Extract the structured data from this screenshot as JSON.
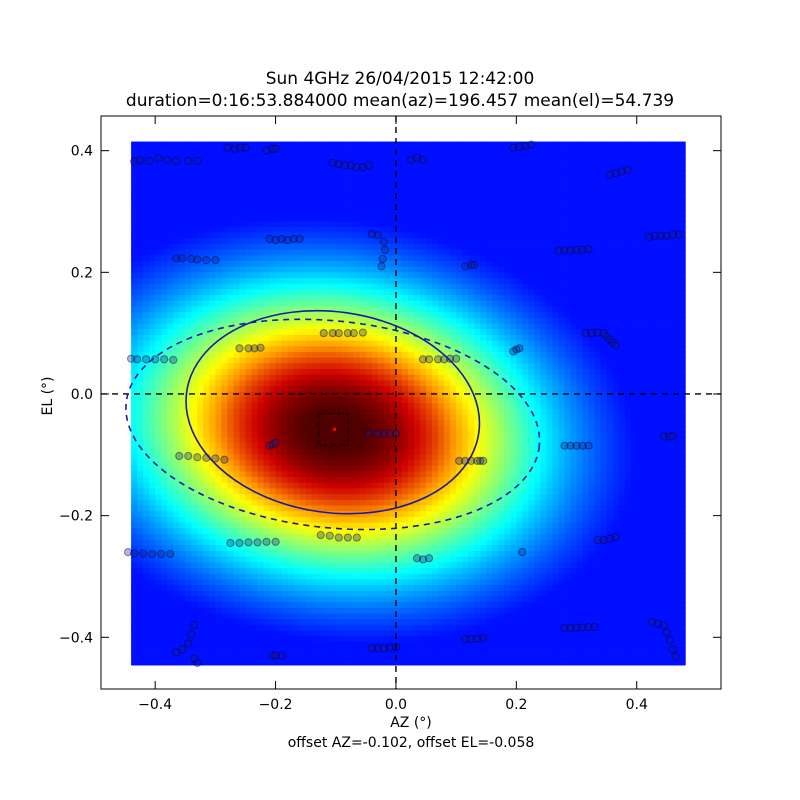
{
  "chart_data": {
    "type": "heatmap",
    "title": "Sun 4GHz 26/04/2015 12:42:00",
    "subtitle": "duration=0:16:53.884000 mean(az)=196.457 mean(el)=54.739",
    "xlabel": "AZ (°)",
    "ylabel": "EL (°)",
    "caption": "offset AZ=-0.102, offset EL=-0.058",
    "xlim": [
      -0.49,
      0.54
    ],
    "ylim": [
      -0.485,
      0.457
    ],
    "xticks": [
      -0.4,
      -0.2,
      0.0,
      0.2,
      0.4
    ],
    "yticks": [
      -0.4,
      -0.2,
      0.0,
      0.2,
      0.4
    ],
    "xtick_labels": [
      "−0.4",
      "−0.2",
      "0.0",
      "0.2",
      "0.4"
    ],
    "ytick_labels": [
      "−0.4",
      "−0.2",
      "0.0",
      "0.2",
      "0.4"
    ],
    "grid": false,
    "colormap": "jet",
    "image_extent": {
      "x": [
        -0.44,
        0.48
      ],
      "y": [
        -0.445,
        0.415
      ]
    },
    "beam_center": [
      -0.1,
      -0.06
    ],
    "beam_radii": [
      0.13,
      0.09
    ],
    "beam_rotation_deg": -8,
    "ellipses": [
      {
        "style": "solid",
        "center": [
          -0.105,
          -0.03
        ],
        "rx": 0.245,
        "ry": 0.165,
        "rotation_deg": -8,
        "color": "#1a1aa8"
      },
      {
        "style": "dashed",
        "center": [
          -0.105,
          -0.05
        ],
        "rx": 0.345,
        "ry": 0.17,
        "rotation_deg": -6,
        "color": "#1a1aa8"
      }
    ],
    "crosshair": {
      "x": 0.0,
      "y": 0.0
    },
    "peak_marker": [
      -0.102,
      -0.058
    ],
    "peak_box": {
      "x": [
        -0.128,
        -0.08
      ],
      "y": [
        -0.084,
        -0.032
      ]
    },
    "scan_points": [
      [
        -0.435,
        0.382
      ],
      [
        -0.425,
        0.385
      ],
      [
        -0.41,
        0.383
      ],
      [
        -0.395,
        0.388
      ],
      [
        -0.38,
        0.385
      ],
      [
        -0.365,
        0.383
      ],
      [
        -0.345,
        0.383
      ],
      [
        -0.33,
        0.383
      ],
      [
        -0.28,
        0.405
      ],
      [
        -0.268,
        0.403
      ],
      [
        -0.258,
        0.405
      ],
      [
        -0.25,
        0.405
      ],
      [
        -0.215,
        0.4
      ],
      [
        -0.205,
        0.403
      ],
      [
        -0.2,
        0.403
      ],
      [
        -0.105,
        0.38
      ],
      [
        -0.095,
        0.378
      ],
      [
        -0.085,
        0.376
      ],
      [
        -0.075,
        0.376
      ],
      [
        -0.065,
        0.373
      ],
      [
        -0.055,
        0.373
      ],
      [
        -0.045,
        0.376
      ],
      [
        0.025,
        0.385
      ],
      [
        0.035,
        0.388
      ],
      [
        0.045,
        0.385
      ],
      [
        0.195,
        0.405
      ],
      [
        0.205,
        0.406
      ],
      [
        0.215,
        0.408
      ],
      [
        0.225,
        0.41
      ],
      [
        0.355,
        0.36
      ],
      [
        0.365,
        0.363
      ],
      [
        0.375,
        0.366
      ],
      [
        0.385,
        0.368
      ],
      [
        -0.365,
        0.223
      ],
      [
        -0.355,
        0.223
      ],
      [
        -0.34,
        0.222
      ],
      [
        -0.33,
        0.221
      ],
      [
        -0.315,
        0.22
      ],
      [
        -0.3,
        0.22
      ],
      [
        -0.21,
        0.255
      ],
      [
        -0.2,
        0.253
      ],
      [
        -0.19,
        0.255
      ],
      [
        -0.18,
        0.253
      ],
      [
        -0.17,
        0.255
      ],
      [
        -0.16,
        0.255
      ],
      [
        -0.04,
        0.263
      ],
      [
        -0.03,
        0.261
      ],
      [
        -0.02,
        0.25
      ],
      [
        -0.018,
        0.237
      ],
      [
        -0.022,
        0.222
      ],
      [
        -0.024,
        0.21
      ],
      [
        0.115,
        0.21
      ],
      [
        0.125,
        0.212
      ],
      [
        0.13,
        0.212
      ],
      [
        0.27,
        0.235
      ],
      [
        0.28,
        0.236
      ],
      [
        0.29,
        0.236
      ],
      [
        0.3,
        0.237
      ],
      [
        0.31,
        0.237
      ],
      [
        0.32,
        0.238
      ],
      [
        0.42,
        0.258
      ],
      [
        0.43,
        0.26
      ],
      [
        0.44,
        0.26
      ],
      [
        0.45,
        0.26
      ],
      [
        0.46,
        0.262
      ],
      [
        0.47,
        0.262
      ],
      [
        -0.44,
        0.058
      ],
      [
        -0.43,
        0.057
      ],
      [
        -0.415,
        0.057
      ],
      [
        -0.4,
        0.057
      ],
      [
        -0.385,
        0.057
      ],
      [
        -0.37,
        0.056
      ],
      [
        -0.26,
        0.075
      ],
      [
        -0.245,
        0.075
      ],
      [
        -0.235,
        0.075
      ],
      [
        -0.225,
        0.076
      ],
      [
        -0.12,
        0.1
      ],
      [
        -0.105,
        0.1
      ],
      [
        -0.095,
        0.1
      ],
      [
        -0.08,
        0.1
      ],
      [
        -0.07,
        0.1
      ],
      [
        -0.055,
        0.101
      ],
      [
        0.045,
        0.057
      ],
      [
        0.055,
        0.057
      ],
      [
        0.07,
        0.057
      ],
      [
        0.08,
        0.057
      ],
      [
        0.09,
        0.058
      ],
      [
        0.1,
        0.058
      ],
      [
        0.195,
        0.07
      ],
      [
        0.2,
        0.073
      ],
      [
        0.205,
        0.075
      ],
      [
        0.315,
        0.1
      ],
      [
        0.325,
        0.1
      ],
      [
        0.335,
        0.101
      ],
      [
        0.345,
        0.1
      ],
      [
        0.35,
        0.095
      ],
      [
        0.355,
        0.09
      ],
      [
        0.36,
        0.085
      ],
      [
        0.365,
        0.08
      ],
      [
        -0.36,
        -0.102
      ],
      [
        -0.345,
        -0.102
      ],
      [
        -0.33,
        -0.104
      ],
      [
        -0.315,
        -0.105
      ],
      [
        -0.3,
        -0.106
      ],
      [
        -0.285,
        -0.108
      ],
      [
        -0.21,
        -0.085
      ],
      [
        -0.205,
        -0.083
      ],
      [
        -0.2,
        -0.08
      ],
      [
        -0.045,
        -0.065
      ],
      [
        -0.03,
        -0.065
      ],
      [
        -0.02,
        -0.065
      ],
      [
        -0.01,
        -0.065
      ],
      [
        0.0,
        -0.066
      ],
      [
        0.105,
        -0.11
      ],
      [
        0.115,
        -0.11
      ],
      [
        0.125,
        -0.11
      ],
      [
        0.135,
        -0.11
      ],
      [
        0.14,
        -0.11
      ],
      [
        0.145,
        -0.11
      ],
      [
        0.28,
        -0.085
      ],
      [
        0.29,
        -0.085
      ],
      [
        0.3,
        -0.085
      ],
      [
        0.31,
        -0.085
      ],
      [
        0.32,
        -0.085
      ],
      [
        0.445,
        -0.07
      ],
      [
        0.455,
        -0.07
      ],
      [
        0.46,
        -0.07
      ],
      [
        -0.445,
        -0.26
      ],
      [
        -0.435,
        -0.262
      ],
      [
        -0.42,
        -0.262
      ],
      [
        -0.405,
        -0.263
      ],
      [
        -0.39,
        -0.263
      ],
      [
        -0.375,
        -0.263
      ],
      [
        -0.275,
        -0.245
      ],
      [
        -0.26,
        -0.245
      ],
      [
        -0.245,
        -0.244
      ],
      [
        -0.23,
        -0.244
      ],
      [
        -0.215,
        -0.243
      ],
      [
        -0.2,
        -0.243
      ],
      [
        -0.125,
        -0.232
      ],
      [
        -0.11,
        -0.233
      ],
      [
        -0.095,
        -0.236
      ],
      [
        -0.08,
        -0.236
      ],
      [
        -0.065,
        -0.236
      ],
      [
        0.035,
        -0.27
      ],
      [
        0.045,
        -0.272
      ],
      [
        0.055,
        -0.27
      ],
      [
        0.21,
        -0.26
      ],
      [
        0.335,
        -0.24
      ],
      [
        0.345,
        -0.24
      ],
      [
        0.355,
        -0.238
      ],
      [
        0.365,
        -0.235
      ],
      [
        -0.365,
        -0.425
      ],
      [
        -0.355,
        -0.42
      ],
      [
        -0.345,
        -0.41
      ],
      [
        -0.34,
        -0.395
      ],
      [
        -0.335,
        -0.38
      ],
      [
        -0.33,
        -0.442
      ],
      [
        -0.335,
        -0.435
      ],
      [
        -0.205,
        -0.43
      ],
      [
        -0.2,
        -0.43
      ],
      [
        -0.19,
        -0.43
      ],
      [
        -0.04,
        -0.418
      ],
      [
        -0.03,
        -0.418
      ],
      [
        -0.02,
        -0.418
      ],
      [
        -0.01,
        -0.417
      ],
      [
        0.0,
        -0.416
      ],
      [
        0.115,
        -0.403
      ],
      [
        0.125,
        -0.403
      ],
      [
        0.135,
        -0.402
      ],
      [
        0.145,
        -0.401
      ],
      [
        0.28,
        -0.385
      ],
      [
        0.29,
        -0.385
      ],
      [
        0.3,
        -0.384
      ],
      [
        0.31,
        -0.384
      ],
      [
        0.32,
        -0.383
      ],
      [
        0.33,
        -0.383
      ],
      [
        0.425,
        -0.375
      ],
      [
        0.435,
        -0.378
      ],
      [
        0.445,
        -0.38
      ],
      [
        0.45,
        -0.392
      ],
      [
        0.455,
        -0.405
      ],
      [
        0.46,
        -0.42
      ],
      [
        0.465,
        -0.432
      ]
    ]
  }
}
